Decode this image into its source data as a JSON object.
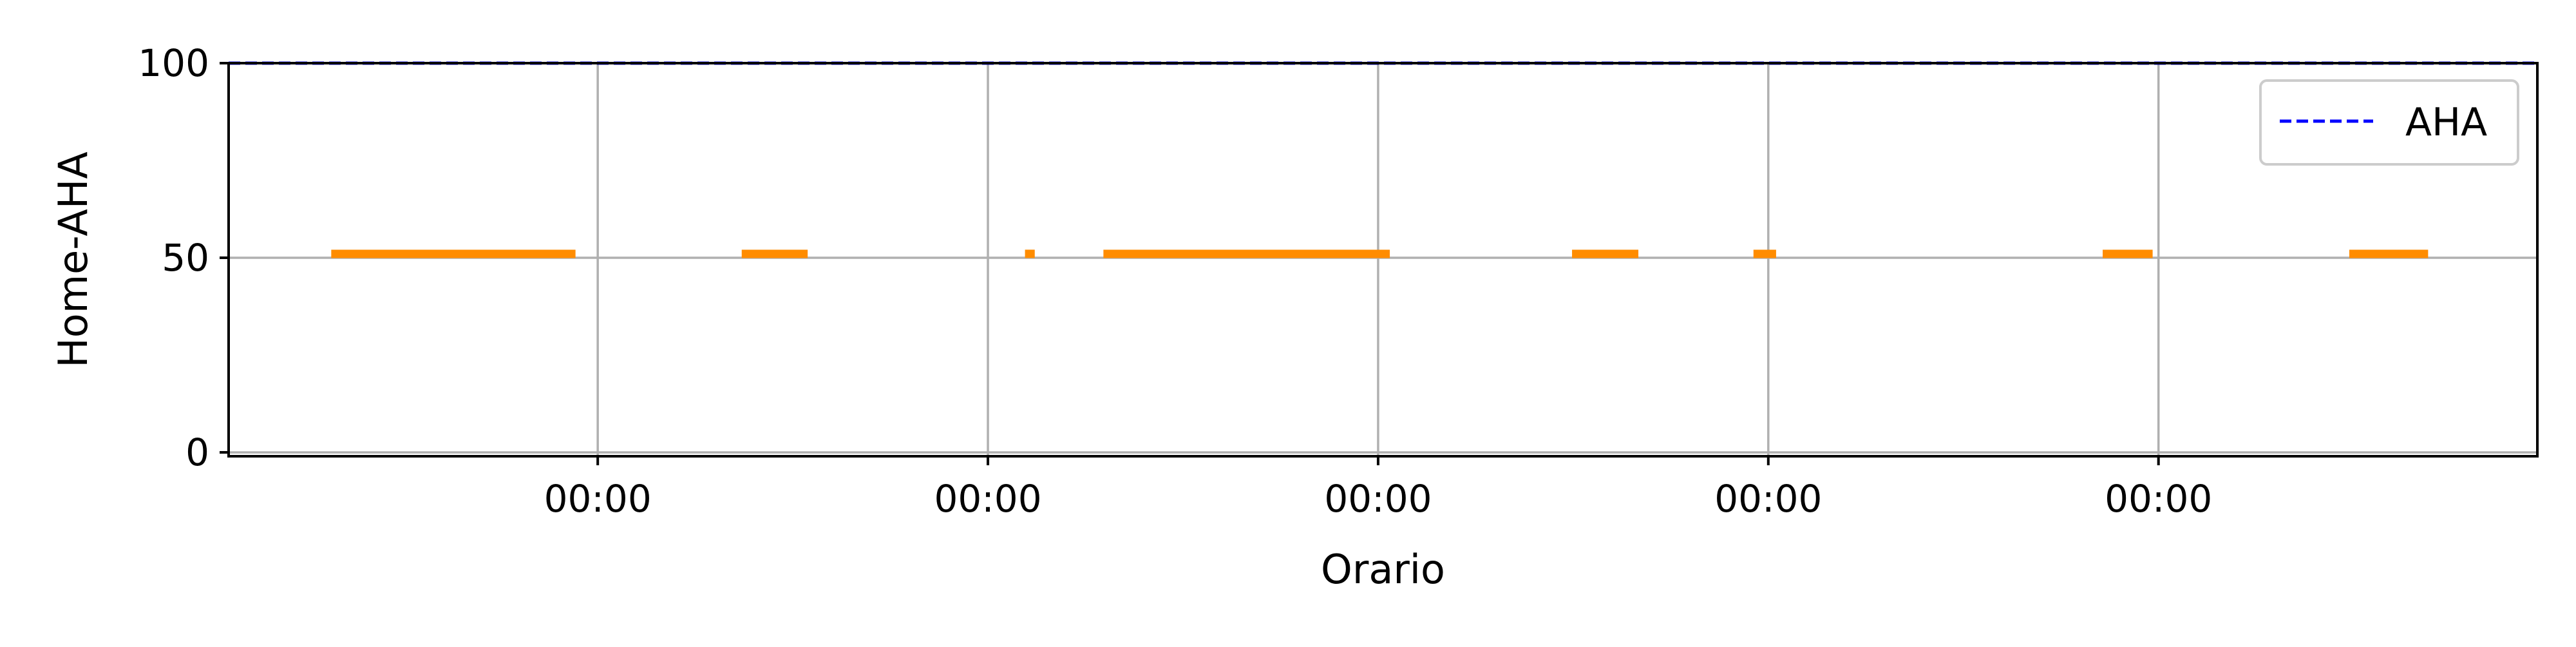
{
  "chart_data": {
    "type": "line",
    "title": "",
    "xlabel": "Orario",
    "ylabel": "Home-AHA",
    "xlim": [
      -0.946,
      4.971
    ],
    "ylim": [
      -1,
      100
    ],
    "yticks": [
      0,
      50,
      100
    ],
    "xticks": [
      {
        "x": 0,
        "label": "00:00"
      },
      {
        "x": 1,
        "label": "00:00"
      },
      {
        "x": 2,
        "label": "00:00"
      },
      {
        "x": 3,
        "label": "00:00"
      },
      {
        "x": 4,
        "label": "00:00"
      }
    ],
    "grid": true,
    "legend": {
      "position": "top-right",
      "entries": [
        {
          "label": "AHA",
          "color": "#0000ff",
          "style": "dashed"
        }
      ]
    },
    "series": [
      {
        "color": "#ff8c00",
        "style": "segments",
        "y": 51,
        "segments": [
          [
            -0.683,
            -0.057
          ],
          [
            0.369,
            0.538
          ],
          [
            1.095,
            1.12
          ],
          [
            1.296,
            2.03
          ],
          [
            2.497,
            2.667
          ],
          [
            2.962,
            3.02
          ],
          [
            3.857,
            3.985
          ],
          [
            4.489,
            4.691
          ]
        ]
      },
      {
        "name": "AHA",
        "color": "#0000ff",
        "style": "dashed",
        "y": 100
      }
    ]
  },
  "colors": {
    "background": "#ffffff",
    "grid": "#b0b0b0",
    "axis": "#000000",
    "event_bars": "#ff8c00",
    "reference_line": "#0000ff"
  }
}
